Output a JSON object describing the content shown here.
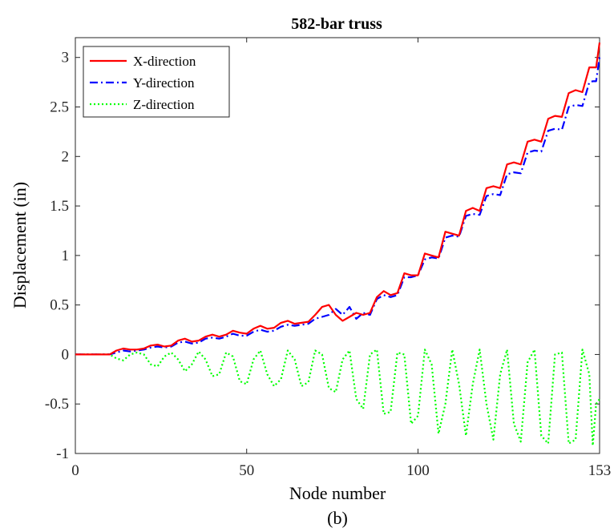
{
  "chart_data": {
    "type": "line",
    "title": "582-bar truss",
    "xlabel": "Node number",
    "ylabel": "Displacement (in)",
    "caption": "(b)",
    "xlim": [
      0,
      153
    ],
    "ylim": [
      -1,
      3.2
    ],
    "xticks": [
      0,
      50,
      100,
      153
    ],
    "xtick_labels": [
      "0",
      "50",
      "100",
      "153"
    ],
    "yticks": [
      -1,
      -0.5,
      0,
      0.5,
      1,
      1.5,
      2,
      2.5,
      3
    ],
    "ytick_labels": [
      "-1",
      "-0.5",
      "0",
      "0.5",
      "1",
      "1.5",
      "2",
      "2.5",
      "3"
    ],
    "grid": false,
    "legend_position": "top-left",
    "series": [
      {
        "name": "X-direction",
        "color": "#ff0000",
        "style": "solid",
        "x": [
          0,
          10,
          12,
          14,
          16,
          18,
          20,
          22,
          24,
          26,
          28,
          30,
          32,
          34,
          36,
          38,
          40,
          42,
          44,
          46,
          48,
          50,
          52,
          54,
          56,
          58,
          60,
          62,
          64,
          66,
          68,
          70,
          72,
          74,
          76,
          78,
          80,
          82,
          84,
          86,
          88,
          90,
          92,
          94,
          96,
          98,
          100,
          102,
          104,
          106,
          108,
          110,
          112,
          114,
          116,
          118,
          120,
          122,
          124,
          126,
          128,
          130,
          132,
          134,
          136,
          138,
          140,
          142,
          144,
          146,
          148,
          150,
          151,
          152,
          153
        ],
        "values": [
          0,
          0,
          0.04,
          0.06,
          0.05,
          0.05,
          0.06,
          0.09,
          0.1,
          0.08,
          0.09,
          0.14,
          0.16,
          0.13,
          0.14,
          0.18,
          0.2,
          0.18,
          0.2,
          0.24,
          0.22,
          0.21,
          0.26,
          0.29,
          0.26,
          0.27,
          0.32,
          0.34,
          0.31,
          0.32,
          0.33,
          0.4,
          0.48,
          0.5,
          0.4,
          0.34,
          0.38,
          0.42,
          0.4,
          0.42,
          0.58,
          0.64,
          0.6,
          0.62,
          0.82,
          0.8,
          0.8,
          1.02,
          1.0,
          0.98,
          1.24,
          1.22,
          1.2,
          1.45,
          1.48,
          1.45,
          1.68,
          1.7,
          1.68,
          1.92,
          1.94,
          1.92,
          2.15,
          2.17,
          2.15,
          2.38,
          2.41,
          2.4,
          2.64,
          2.67,
          2.65,
          2.9,
          2.9,
          2.9,
          3.15
        ]
      },
      {
        "name": "Y-direction",
        "color": "#0000ff",
        "style": "dashdot",
        "x": [
          0,
          10,
          12,
          14,
          16,
          18,
          20,
          22,
          24,
          26,
          28,
          30,
          32,
          34,
          36,
          38,
          40,
          42,
          44,
          46,
          48,
          50,
          52,
          54,
          56,
          58,
          60,
          62,
          64,
          66,
          68,
          70,
          72,
          74,
          76,
          78,
          80,
          82,
          84,
          86,
          88,
          90,
          92,
          94,
          96,
          98,
          100,
          102,
          104,
          106,
          108,
          110,
          112,
          114,
          116,
          118,
          120,
          122,
          124,
          126,
          128,
          130,
          132,
          134,
          136,
          138,
          140,
          142,
          144,
          146,
          148,
          150,
          151,
          152,
          153
        ],
        "values": [
          0,
          0,
          0.02,
          0.04,
          0.03,
          0.04,
          0.05,
          0.07,
          0.08,
          0.07,
          0.08,
          0.12,
          0.13,
          0.11,
          0.12,
          0.16,
          0.17,
          0.16,
          0.18,
          0.21,
          0.19,
          0.19,
          0.23,
          0.25,
          0.23,
          0.24,
          0.28,
          0.3,
          0.29,
          0.3,
          0.31,
          0.36,
          0.38,
          0.4,
          0.46,
          0.4,
          0.48,
          0.36,
          0.42,
          0.4,
          0.56,
          0.6,
          0.58,
          0.6,
          0.78,
          0.78,
          0.8,
          0.96,
          0.98,
          0.97,
          1.18,
          1.2,
          1.19,
          1.4,
          1.42,
          1.41,
          1.6,
          1.62,
          1.61,
          1.82,
          1.84,
          1.83,
          2.04,
          2.06,
          2.05,
          2.26,
          2.28,
          2.27,
          2.5,
          2.52,
          2.51,
          2.75,
          2.76,
          2.76,
          3.0
        ]
      },
      {
        "name": "Z-direction",
        "color": "#00ff00",
        "style": "dotted",
        "x": [
          0,
          10,
          12,
          14,
          16,
          18,
          20,
          22,
          24,
          26,
          28,
          30,
          32,
          34,
          36,
          38,
          40,
          42,
          44,
          46,
          48,
          50,
          52,
          54,
          56,
          58,
          60,
          62,
          64,
          66,
          68,
          70,
          72,
          74,
          76,
          78,
          80,
          82,
          84,
          86,
          88,
          90,
          92,
          94,
          96,
          98,
          100,
          102,
          104,
          106,
          108,
          110,
          112,
          114,
          116,
          118,
          120,
          122,
          124,
          126,
          128,
          130,
          132,
          134,
          136,
          138,
          140,
          142,
          144,
          146,
          148,
          150,
          151,
          152,
          153
        ],
        "values": [
          0,
          0,
          -0.04,
          -0.06,
          0.0,
          0.02,
          0.0,
          -0.1,
          -0.12,
          -0.02,
          0.02,
          -0.05,
          -0.17,
          -0.1,
          0.03,
          -0.05,
          -0.22,
          -0.2,
          0.02,
          -0.02,
          -0.27,
          -0.3,
          -0.05,
          0.04,
          -0.2,
          -0.32,
          -0.25,
          0.04,
          -0.05,
          -0.32,
          -0.28,
          0.04,
          0.0,
          -0.34,
          -0.38,
          -0.05,
          0.04,
          -0.45,
          -0.55,
          0.0,
          0.05,
          -0.6,
          -0.58,
          0.02,
          0.0,
          -0.7,
          -0.62,
          0.05,
          -0.1,
          -0.8,
          -0.5,
          0.05,
          -0.3,
          -0.82,
          -0.3,
          0.05,
          -0.5,
          -0.86,
          -0.2,
          0.05,
          -0.7,
          -0.88,
          -0.08,
          0.05,
          -0.82,
          -0.9,
          0.0,
          0.02,
          -0.9,
          -0.86,
          0.05,
          -0.2,
          -0.92,
          -0.5,
          -0.45
        ]
      }
    ]
  }
}
